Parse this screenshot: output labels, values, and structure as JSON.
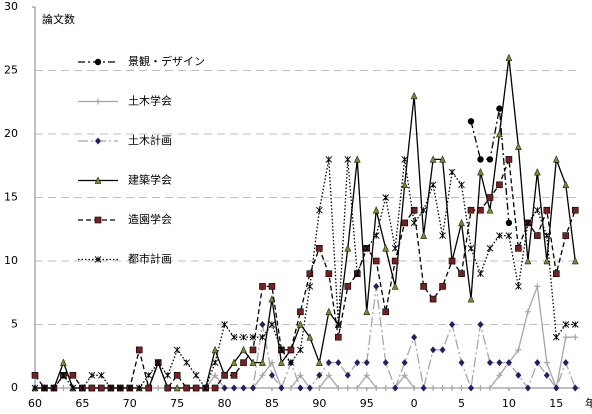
{
  "chart_data": {
    "type": "line",
    "y_label": "論文数",
    "x_label": "年",
    "x": [
      1960,
      1961,
      1962,
      1963,
      1964,
      1965,
      1966,
      1967,
      1968,
      1969,
      1970,
      1971,
      1972,
      1973,
      1974,
      1975,
      1976,
      1977,
      1978,
      1979,
      1980,
      1981,
      1982,
      1983,
      1984,
      1985,
      1986,
      1987,
      1988,
      1989,
      1990,
      1991,
      1992,
      1993,
      1994,
      1995,
      1996,
      1997,
      1998,
      1999,
      2000,
      2001,
      2002,
      2003,
      2004,
      2005,
      2006,
      2007,
      2008,
      2009,
      2010,
      2011,
      2012,
      2013,
      2014,
      2015,
      2016,
      2017
    ],
    "xlim": [
      1960,
      2017.5
    ],
    "xticks": [
      {
        "value": 1960,
        "label": "60"
      },
      {
        "value": 1965,
        "label": "65"
      },
      {
        "value": 1970,
        "label": "70"
      },
      {
        "value": 1975,
        "label": "75"
      },
      {
        "value": 1980,
        "label": "80"
      },
      {
        "value": 1985,
        "label": "85"
      },
      {
        "value": 1990,
        "label": "90"
      },
      {
        "value": 1995,
        "label": "95"
      },
      {
        "value": 2000,
        "label": "0"
      },
      {
        "value": 2005,
        "label": "5"
      },
      {
        "value": 2010,
        "label": "10"
      },
      {
        "value": 2015,
        "label": "15"
      }
    ],
    "ylim": [
      0,
      30
    ],
    "yticks": [
      0,
      5,
      10,
      15,
      20,
      25,
      30
    ],
    "grid": true,
    "legend": "upper left",
    "series": [
      {
        "name": "景観・デザイン",
        "color": "#000000",
        "marker_color": "#000000",
        "marker": "circle",
        "dash": "dashdot",
        "values": [
          null,
          null,
          null,
          null,
          null,
          null,
          null,
          null,
          null,
          null,
          null,
          null,
          null,
          null,
          null,
          null,
          null,
          null,
          null,
          null,
          null,
          null,
          null,
          null,
          null,
          null,
          null,
          null,
          null,
          null,
          null,
          null,
          null,
          null,
          null,
          null,
          null,
          null,
          null,
          null,
          null,
          null,
          null,
          null,
          null,
          null,
          21,
          18,
          18,
          22,
          13,
          null,
          null,
          null,
          null,
          null,
          null,
          null
        ]
      },
      {
        "name": "土木学会",
        "color": "#a6a6a6",
        "marker_color": "#a6a6a6",
        "marker": "plus",
        "dash": "solid",
        "values": [
          0,
          0,
          0,
          0,
          0,
          0,
          0,
          0,
          0,
          0,
          0,
          0,
          0,
          0,
          0,
          0,
          0,
          0,
          0,
          1,
          0,
          0,
          0,
          0,
          1,
          2,
          0,
          0,
          1,
          0,
          0,
          1,
          0,
          0,
          0,
          1,
          0,
          0,
          0,
          1,
          0,
          0,
          0,
          0,
          0,
          0,
          0,
          0,
          0,
          1,
          2,
          3,
          6,
          8,
          2,
          0,
          4,
          4
        ]
      },
      {
        "name": "土木計画",
        "color": "#a6a6a6",
        "marker_color": "#1f1f6b",
        "marker": "diamond",
        "dash": "longdashdot",
        "values": [
          null,
          null,
          null,
          null,
          null,
          null,
          null,
          null,
          null,
          null,
          null,
          null,
          null,
          null,
          null,
          null,
          null,
          null,
          null,
          null,
          0,
          0,
          0,
          0,
          5,
          1,
          0,
          2,
          0,
          0,
          1,
          2,
          2,
          1,
          2,
          2,
          8,
          2,
          0,
          2,
          4,
          0,
          3,
          3,
          5,
          2,
          0,
          5,
          2,
          2,
          2,
          1,
          0,
          2,
          1,
          0,
          2,
          0
        ]
      },
      {
        "name": "建築学会",
        "color": "#000000",
        "marker_color": "#7a8a2a",
        "marker": "triangle",
        "dash": "solid",
        "values": [
          0,
          0,
          0,
          2,
          0,
          0,
          0,
          0,
          0,
          0,
          0,
          0,
          0,
          2,
          0,
          0,
          0,
          0,
          0,
          3,
          1,
          2,
          3,
          2,
          2,
          7,
          2,
          3,
          5,
          4,
          2,
          6,
          5,
          11,
          18,
          6,
          14,
          11,
          8,
          16,
          23,
          12,
          18,
          18,
          10,
          13,
          7,
          17,
          14,
          20,
          26,
          19,
          10,
          17,
          10,
          18,
          16,
          10
        ]
      },
      {
        "name": "造園学会",
        "color": "#000000",
        "marker_color": "#7a1f1f",
        "marker": "square",
        "dash": "dashed",
        "values": [
          1,
          0,
          0,
          1,
          1,
          0,
          0,
          0,
          0,
          0,
          0,
          3,
          0,
          2,
          0,
          1,
          0,
          0,
          0,
          0,
          1,
          1,
          2,
          3,
          8,
          8,
          3,
          3,
          6,
          9,
          11,
          9,
          4,
          8,
          9,
          11,
          10,
          6,
          10,
          13,
          14,
          8,
          7,
          8,
          10,
          9,
          14,
          14,
          15,
          16,
          18,
          11,
          13,
          12,
          14,
          9,
          12,
          14
        ]
      },
      {
        "name": "都市計画",
        "color": "#000000",
        "marker_color": "#000000",
        "marker": "asterisk",
        "dash": "dotted",
        "values": [
          0,
          0,
          0,
          1,
          0,
          0,
          1,
          1,
          0,
          0,
          0,
          0,
          1,
          2,
          1,
          3,
          2,
          1,
          0,
          2,
          5,
          4,
          4,
          4,
          4,
          5,
          3,
          2,
          3,
          8,
          14,
          18,
          5,
          18,
          9,
          11,
          12,
          15,
          11,
          18,
          13,
          14,
          16,
          12,
          17,
          16,
          11,
          9,
          11,
          12,
          12,
          8,
          13,
          14,
          12,
          4,
          5,
          5
        ]
      }
    ]
  }
}
